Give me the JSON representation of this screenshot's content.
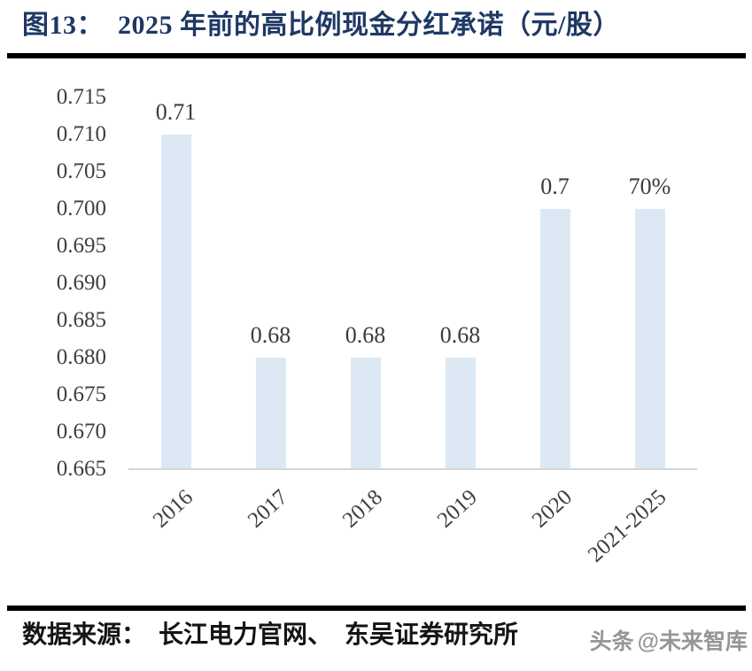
{
  "header": {
    "title": "图13：  2025 年前的高比例现金分红承诺（元/股）"
  },
  "chart_data": {
    "type": "bar",
    "title": "2025 年前的高比例现金分红承诺（元/股）",
    "categories": [
      "2016",
      "2017",
      "2018",
      "2019",
      "2020",
      "2021-2025"
    ],
    "values": [
      0.71,
      0.68,
      0.68,
      0.68,
      0.7,
      0.7
    ],
    "value_labels": [
      "0.71",
      "0.68",
      "0.68",
      "0.68",
      "0.7",
      "70%"
    ],
    "xlabel": "",
    "ylabel": "",
    "ylim": [
      0.665,
      0.715
    ],
    "ytick_step": 0.005,
    "yticks": [
      "0.715",
      "0.710",
      "0.705",
      "0.700",
      "0.695",
      "0.690",
      "0.685",
      "0.680",
      "0.675",
      "0.670",
      "0.665"
    ],
    "grid": false,
    "legend": "none",
    "bar_color": "#dce9f5",
    "axis_line_color": "#d6d6d6",
    "tick_label_color": "#3f3f3f"
  },
  "footer": {
    "source": "数据来源：  长江电力官网、  东吴证券研究所",
    "watermark_logo": "头条",
    "watermark_handle": "@未来智库"
  },
  "colors": {
    "title": "#1f3864",
    "divider": "#000000"
  }
}
